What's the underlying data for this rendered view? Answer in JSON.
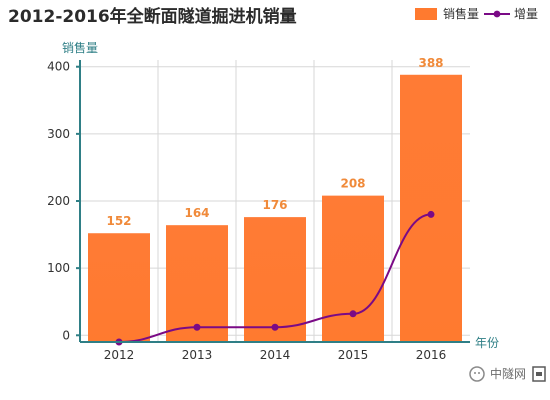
{
  "chart_data": {
    "type": "bar",
    "title": "2012-2016年全断面隧道掘进机销量",
    "xlabel": "年份",
    "ylabel": "销售量",
    "categories": [
      "2012",
      "2013",
      "2014",
      "2015",
      "2016"
    ],
    "series": [
      {
        "name": "销售量",
        "type": "bar",
        "values": [
          152,
          164,
          176,
          208,
          388
        ],
        "color": "#ff7a2f"
      },
      {
        "name": "增量",
        "type": "line",
        "values": [
          -10,
          12,
          12,
          32,
          180
        ],
        "color": "#7a0a86"
      }
    ],
    "yTicks": [
      0,
      100,
      200,
      300,
      400
    ],
    "ylim": [
      -10,
      410
    ],
    "grid": true,
    "legend_position": "top-right"
  },
  "watermark": {
    "text": "中隧网",
    "icon": "wechat-icon"
  }
}
